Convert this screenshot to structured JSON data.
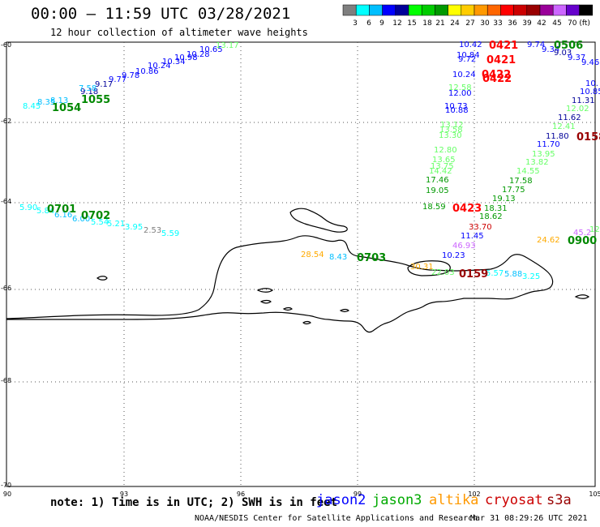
{
  "header": {
    "title": "00:00 – 11:59 UTC 03/28/2021",
    "subtitle": "12 hour collection of altimeter wave heights"
  },
  "colorbar": {
    "colors": [
      "#7f7f7f",
      "#00ffff",
      "#00bfff",
      "#0000ff",
      "#000099",
      "#00ff00",
      "#00cc00",
      "#009900",
      "#ffff00",
      "#ffcc00",
      "#ff9900",
      "#ff6600",
      "#ff0000",
      "#cc0000",
      "#990000",
      "#990099",
      "#cc66ff",
      "#6600cc",
      "#000000"
    ],
    "labels": [
      "3",
      "6",
      "9",
      "12",
      "15",
      "18",
      "21",
      "24",
      "27",
      "30",
      "33",
      "36",
      "39",
      "42",
      "45",
      "70 (ft)"
    ]
  },
  "axes": {
    "lat_labels": [
      "-60",
      "-62",
      "-64",
      "-66",
      "-68",
      "-70"
    ],
    "lon_labels": [
      "90",
      "93",
      "96",
      "99",
      "102",
      "105"
    ]
  },
  "wave_heights": [
    {
      "text": "10.65",
      "color": "#0000ff"
    },
    {
      "text": "10.28",
      "color": "#0000ff"
    },
    {
      "text": "10.98",
      "color": "#0000ff"
    },
    {
      "text": "10.34",
      "color": "#0000ff"
    },
    {
      "text": "10.24",
      "color": "#0000ff"
    },
    {
      "text": "10.86",
      "color": "#0000ff"
    },
    {
      "text": "9.78",
      "color": "#0000ff"
    },
    {
      "text": "9.77",
      "color": "#0000ff"
    },
    {
      "text": "9.17",
      "color": "#000099"
    },
    {
      "text": "9.18",
      "color": "#000099"
    },
    {
      "text": "8.13",
      "color": "#00bfff"
    },
    {
      "text": "8.45",
      "color": "#00ffff"
    },
    {
      "text": "7.58",
      "color": "#00bfff"
    },
    {
      "text": "8.35",
      "color": "#00bfff"
    },
    {
      "text": "13.17",
      "color": "#66ff66"
    },
    {
      "text": "5.90",
      "color": "#00ffff"
    },
    {
      "text": "5.84",
      "color": "#00ffff"
    },
    {
      "text": "6.16",
      "color": "#00bfff"
    },
    {
      "text": "6.00",
      "color": "#00bfff"
    },
    {
      "text": "5.54",
      "color": "#00ffff"
    },
    {
      "text": "5.21",
      "color": "#00ffff"
    },
    {
      "text": "3.95",
      "color": "#00ffff"
    },
    {
      "text": "2.53",
      "color": "#7f7f7f"
    },
    {
      "text": "5.59",
      "color": "#00ffff"
    },
    {
      "text": "10.42",
      "color": "#0000ff"
    },
    {
      "text": "10.84",
      "color": "#0000ff"
    },
    {
      "text": "9.72",
      "color": "#0000ff"
    },
    {
      "text": "10.24",
      "color": "#0000ff"
    },
    {
      "text": "12.58",
      "color": "#66ff66"
    },
    {
      "text": "12.00",
      "color": "#0000ff"
    },
    {
      "text": "10.73",
      "color": "#0000ff"
    },
    {
      "text": "10.88",
      "color": "#0000ff"
    },
    {
      "text": "13.12",
      "color": "#66ff66"
    },
    {
      "text": "13.58",
      "color": "#66ff66"
    },
    {
      "text": "13.30",
      "color": "#66ff66"
    },
    {
      "text": "12.80",
      "color": "#66ff66"
    },
    {
      "text": "13.65",
      "color": "#66ff66"
    },
    {
      "text": "13.75",
      "color": "#66ff66"
    },
    {
      "text": "14.42",
      "color": "#66ff66"
    },
    {
      "text": "17.46",
      "color": "#009900"
    },
    {
      "text": "19.05",
      "color": "#009900"
    },
    {
      "text": "18.59",
      "color": "#009900"
    },
    {
      "text": "9.74",
      "color": "#0000ff"
    },
    {
      "text": "9.34",
      "color": "#0000ff"
    },
    {
      "text": "9.03",
      "color": "#000099"
    },
    {
      "text": "9.37",
      "color": "#0000ff"
    },
    {
      "text": "9.46",
      "color": "#0000ff"
    },
    {
      "text": "10.",
      "color": "#0000ff"
    },
    {
      "text": "10.85",
      "color": "#0000ff"
    },
    {
      "text": "11.31",
      "color": "#000099"
    },
    {
      "text": "12.02",
      "color": "#66ff66"
    },
    {
      "text": "11.62",
      "color": "#000099"
    },
    {
      "text": "12.41",
      "color": "#66ff66"
    },
    {
      "text": "11.80",
      "color": "#000099"
    },
    {
      "text": "11.70",
      "color": "#0000ff"
    },
    {
      "text": "13.95",
      "color": "#66ff66"
    },
    {
      "text": "13.82",
      "color": "#66ff66"
    },
    {
      "text": "14.55",
      "color": "#66ff66"
    },
    {
      "text": "17.58",
      "color": "#009900"
    },
    {
      "text": "17.75",
      "color": "#009900"
    },
    {
      "text": "19.13",
      "color": "#009900"
    },
    {
      "text": "18.31",
      "color": "#009900"
    },
    {
      "text": "18.62",
      "color": "#009900"
    },
    {
      "text": "33.70",
      "color": "#cc0000"
    },
    {
      "text": "11.45",
      "color": "#0000ff"
    },
    {
      "text": "46.93",
      "color": "#cc66ff"
    },
    {
      "text": "10.23",
      "color": "#0000ff"
    },
    {
      "text": "24.62",
      "color": "#ffaa00"
    },
    {
      "text": "45.2",
      "color": "#cc66ff"
    },
    {
      "text": "12",
      "color": "#66ff66"
    },
    {
      "text": "28.54",
      "color": "#ffaa00"
    },
    {
      "text": "8.43",
      "color": "#00bfff"
    },
    {
      "text": "30.31",
      "color": "#ffaa00"
    },
    {
      "text": "22.03",
      "color": "#66ff66"
    },
    {
      "text": "5.57",
      "color": "#00ffff"
    },
    {
      "text": "5.88",
      "color": "#00bfff"
    },
    {
      "text": "3.25",
      "color": "#00ffff"
    }
  ],
  "pass_times": [
    {
      "text": "1054",
      "color": "#008800"
    },
    {
      "text": "1055",
      "color": "#008800"
    },
    {
      "text": "0701",
      "color": "#008800"
    },
    {
      "text": "0702",
      "color": "#008800"
    },
    {
      "text": "0703",
      "color": "#008800"
    },
    {
      "text": "0421",
      "color": "#ff0000"
    },
    {
      "text": "0421",
      "color": "#ff0000"
    },
    {
      "text": "0422",
      "color": "#ff0000"
    },
    {
      "text": "0422",
      "color": "#ff0000"
    },
    {
      "text": "0506",
      "color": "#008800"
    },
    {
      "text": "0158",
      "color": "#990000"
    },
    {
      "text": "0423",
      "color": "#ff0000"
    },
    {
      "text": "0900",
      "color": "#008800"
    },
    {
      "text": "0159",
      "color": "#990000"
    }
  ],
  "footer": {
    "note": "note: 1) Time is in UTC; 2) SWH is in feet",
    "satellites": [
      {
        "name": "jason2",
        "color": "#0000ff"
      },
      {
        "name": "jason3",
        "color": "#00aa00"
      },
      {
        "name": "altika",
        "color": "#ff9900"
      },
      {
        "name": "cryosat",
        "color": "#cc0000"
      },
      {
        "name": "s3a",
        "color": "#990000"
      }
    ],
    "credit": "NOAA/NESDIS Center for Satellite Applications and Research",
    "timestamp": "Mar 31 08:29:26 UTC 2021"
  }
}
